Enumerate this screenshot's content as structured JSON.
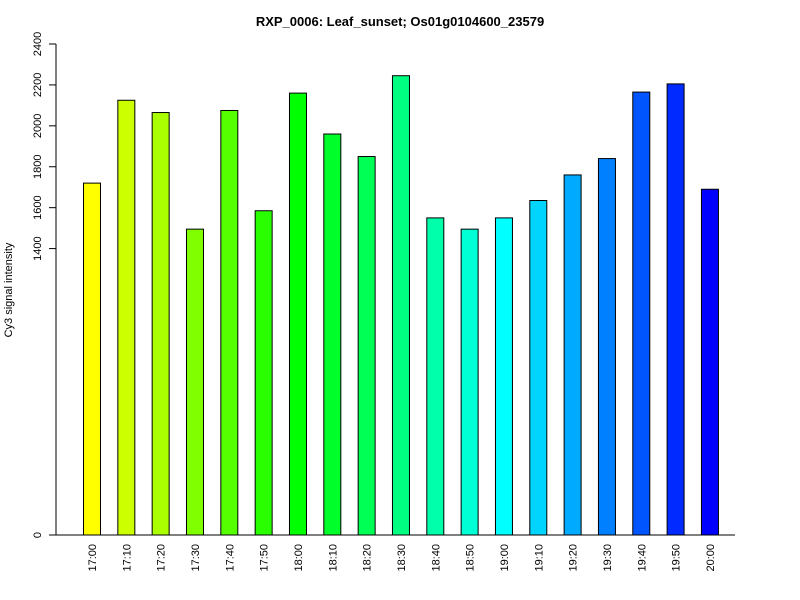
{
  "chart_data": {
    "type": "bar",
    "title": "RXP_0006: Leaf_sunset; Os01g0104600_23579",
    "xlabel": "",
    "ylabel": "Cy3 signal intensity",
    "ylim": [
      0,
      2400
    ],
    "y_ticks": [
      0,
      1400,
      1600,
      1800,
      2000,
      2200,
      2400
    ],
    "categories": [
      "17:00",
      "17:10",
      "17:20",
      "17:30",
      "17:40",
      "17:50",
      "18:00",
      "18:10",
      "18:20",
      "18:30",
      "18:40",
      "18:50",
      "19:00",
      "19:10",
      "19:20",
      "19:30",
      "19:40",
      "19:50",
      "20:00"
    ],
    "values": [
      1720,
      2125,
      2065,
      1495,
      2075,
      1585,
      2160,
      1960,
      1850,
      2245,
      1550,
      1495,
      1550,
      1635,
      1760,
      1840,
      2165,
      2205,
      1690
    ],
    "colors": [
      "#FFFF00",
      "#CCFF00",
      "#AAFF00",
      "#80FF00",
      "#55FF00",
      "#2AFF00",
      "#00FF00",
      "#00FF2A",
      "#00FF55",
      "#00FF80",
      "#00FFAA",
      "#00FFD4",
      "#00FFFF",
      "#00D4FF",
      "#00AAFF",
      "#0080FF",
      "#0055FF",
      "#002AFF",
      "#0000FF"
    ],
    "grid": false,
    "legend": "none"
  }
}
